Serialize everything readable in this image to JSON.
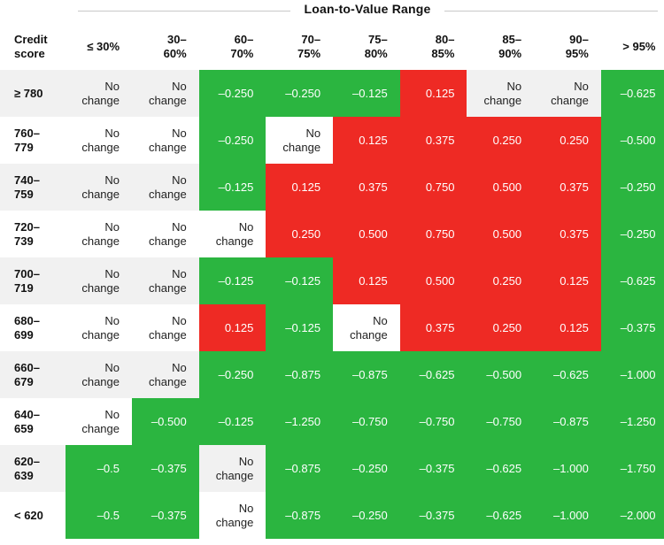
{
  "chart_data": {
    "type": "table",
    "title": "Loan-to-Value Range",
    "row_header_label": "Credit score",
    "columns": [
      "≤ 30%",
      "30–60%",
      "60–70%",
      "70–75%",
      "75–80%",
      "80–85%",
      "85–90%",
      "90–95%",
      "> 95%"
    ],
    "columns_display": [
      [
        "≤ 30%"
      ],
      [
        "30–",
        "60%"
      ],
      [
        "60–",
        "70%"
      ],
      [
        "70–",
        "75%"
      ],
      [
        "75–",
        "80%"
      ],
      [
        "80–",
        "85%"
      ],
      [
        "85–",
        "90%"
      ],
      [
        "90–",
        "95%"
      ],
      [
        "> 95%"
      ]
    ],
    "no_change_label": [
      "No",
      "change"
    ],
    "rows": [
      {
        "label": "≥ 780",
        "label_display": [
          "≥ 780"
        ],
        "values": [
          null,
          null,
          "–0.250",
          "–0.250",
          "–0.125",
          "0.125",
          null,
          null,
          "–0.625"
        ]
      },
      {
        "label": "760–779",
        "label_display": [
          "760–",
          "779"
        ],
        "values": [
          null,
          null,
          "–0.250",
          null,
          "0.125",
          "0.375",
          "0.250",
          "0.250",
          "–0.500"
        ]
      },
      {
        "label": "740–759",
        "label_display": [
          "740–",
          "759"
        ],
        "values": [
          null,
          null,
          "–0.125",
          "0.125",
          "0.375",
          "0.750",
          "0.500",
          "0.375",
          "–0.250"
        ]
      },
      {
        "label": "720–739",
        "label_display": [
          "720–",
          "739"
        ],
        "values": [
          null,
          null,
          null,
          "0.250",
          "0.500",
          "0.750",
          "0.500",
          "0.375",
          "–0.250"
        ]
      },
      {
        "label": "700–719",
        "label_display": [
          "700–",
          "719"
        ],
        "values": [
          null,
          null,
          "–0.125",
          "–0.125",
          "0.125",
          "0.500",
          "0.250",
          "0.125",
          "–0.625"
        ]
      },
      {
        "label": "680–699",
        "label_display": [
          "680–",
          "699"
        ],
        "values": [
          null,
          null,
          "0.125",
          "–0.125",
          null,
          "0.375",
          "0.250",
          "0.125",
          "–0.375"
        ]
      },
      {
        "label": "660–679",
        "label_display": [
          "660–",
          "679"
        ],
        "values": [
          null,
          null,
          "–0.250",
          "–0.875",
          "–0.875",
          "–0.625",
          "–0.500",
          "–0.625",
          "–1.000"
        ]
      },
      {
        "label": "640–659",
        "label_display": [
          "640–",
          "659"
        ],
        "values": [
          null,
          "–0.500",
          "–0.125",
          "–1.250",
          "–0.750",
          "–0.750",
          "–0.750",
          "–0.875",
          "–1.250"
        ]
      },
      {
        "label": "620–639",
        "label_display": [
          "620–",
          "639"
        ],
        "values": [
          "–0.5",
          "–0.375",
          null,
          "–0.875",
          "–0.250",
          "–0.375",
          "–0.625",
          "–1.000",
          "–1.750"
        ]
      },
      {
        "label": "< 620",
        "label_display": [
          "< 620"
        ],
        "values": [
          "–0.5",
          "–0.375",
          null,
          "–0.875",
          "–0.250",
          "–0.375",
          "–0.625",
          "–1.000",
          "–2.000"
        ]
      }
    ],
    "colors": {
      "positive": "#ee2a24",
      "negative": "#2bb540",
      "no_change": "#ffffff",
      "stripe": "#f1f1f1"
    }
  }
}
